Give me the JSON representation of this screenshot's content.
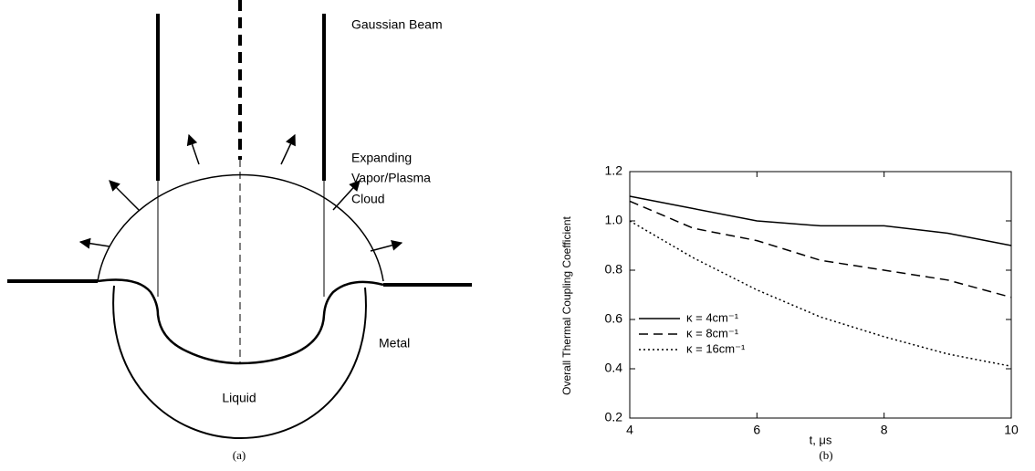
{
  "diagram": {
    "beam_label": "Gaussian Beam",
    "cloud_label": [
      "Expanding",
      "Vapor/Plasma",
      "Cloud"
    ],
    "metal_label": "Metal",
    "liquid_label": "Liquid",
    "caption": "(a)"
  },
  "chart_data": {
    "type": "line",
    "caption": "(b)",
    "x_label": "t, μs",
    "y_label": "Overall Thermal Coupling Coefficient",
    "x": [
      4,
      5,
      6,
      7,
      8,
      9,
      10
    ],
    "series": [
      {
        "name": "κ = 4cm⁻¹",
        "color": "#000000",
        "style": "solid",
        "values": [
          1.1,
          1.05,
          1.0,
          0.98,
          0.98,
          0.95,
          0.9
        ]
      },
      {
        "name": "κ = 8cm⁻¹",
        "color": "#000000",
        "style": "dashed",
        "values": [
          1.08,
          0.97,
          0.92,
          0.84,
          0.8,
          0.76,
          0.69
        ]
      },
      {
        "name": "κ = 16cm⁻¹",
        "color": "#000000",
        "style": "dotted",
        "values": [
          1.0,
          0.85,
          0.72,
          0.61,
          0.53,
          0.46,
          0.41
        ]
      }
    ],
    "xlim": [
      4,
      10
    ],
    "xticks": [
      4,
      6,
      8,
      10
    ],
    "ylim": [
      0.2,
      1.2
    ],
    "yticks": [
      0.2,
      0.4,
      0.6,
      0.8,
      {
        "value": 1.0,
        "label": "1.0"
      },
      1.2
    ],
    "legend": "lower-left"
  }
}
